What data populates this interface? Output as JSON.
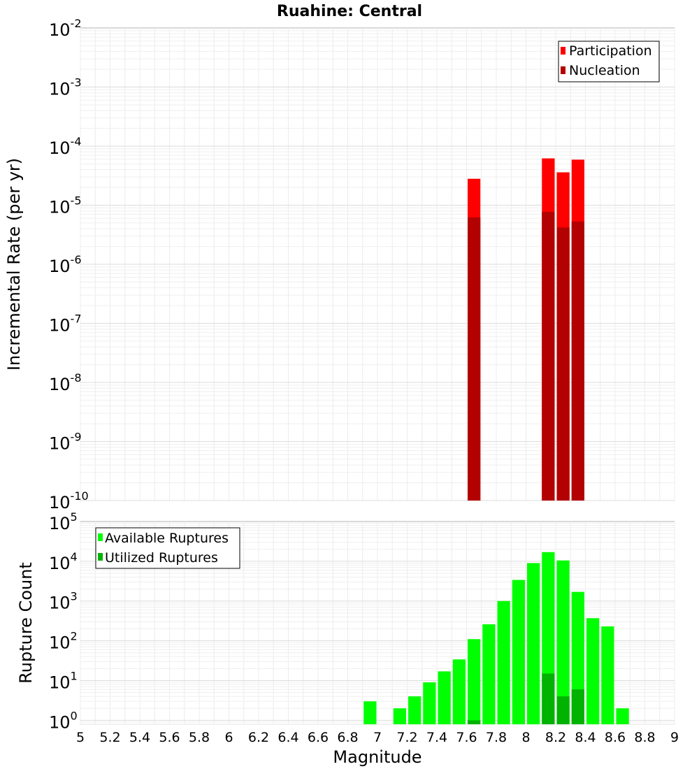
{
  "title": "Ruahine: Central",
  "chart_data": [
    {
      "type": "bar",
      "panel": "top",
      "ylabel": "Incremental Rate (per yr)",
      "xlabel": "",
      "ylog": true,
      "ylim_exp": [
        -10,
        -2
      ],
      "xlim": [
        5,
        9
      ],
      "grid": true,
      "legend_placement": "top-right",
      "bar_width": 0.1,
      "series": [
        {
          "name": "Participation",
          "color": "#ff0000",
          "points": [
            [
              7.65,
              2.8e-05
            ],
            [
              8.15,
              6.2e-05
            ],
            [
              8.25,
              3.6e-05
            ],
            [
              8.35,
              5.9e-05
            ]
          ]
        },
        {
          "name": "Nucleation",
          "color": "#b30000",
          "points": [
            [
              7.65,
              6.2e-06
            ],
            [
              8.15,
              7.7e-06
            ],
            [
              8.25,
              4.2e-06
            ],
            [
              8.35,
              5.3e-06
            ]
          ]
        }
      ]
    },
    {
      "type": "bar",
      "panel": "bottom",
      "ylabel": "Rupture Count",
      "xlabel": "Magnitude",
      "ylog": true,
      "ylim_exp": [
        -0.1,
        5
      ],
      "xlim": [
        5,
        9
      ],
      "grid": true,
      "legend_placement": "top-left",
      "bar_width": 0.1,
      "x_ticks": [
        "5",
        "5.2",
        "5.4",
        "5.6",
        "5.8",
        "6",
        "6.2",
        "6.4",
        "6.6",
        "6.8",
        "7",
        "7.2",
        "7.4",
        "7.6",
        "7.8",
        "8",
        "8.2",
        "8.4",
        "8.6",
        "8.8",
        "9"
      ],
      "series": [
        {
          "name": "Available Ruptures",
          "color": "#00ff00",
          "points": [
            [
              6.95,
              3
            ],
            [
              7.15,
              2
            ],
            [
              7.25,
              4
            ],
            [
              7.35,
              9
            ],
            [
              7.45,
              17
            ],
            [
              7.55,
              34
            ],
            [
              7.65,
              110
            ],
            [
              7.75,
              260
            ],
            [
              7.85,
              1000
            ],
            [
              7.95,
              3400
            ],
            [
              8.05,
              9000
            ],
            [
              8.15,
              17000
            ],
            [
              8.25,
              10500
            ],
            [
              8.35,
              1700
            ],
            [
              8.45,
              370
            ],
            [
              8.55,
              230
            ],
            [
              8.65,
              2
            ]
          ]
        },
        {
          "name": "Utilized Ruptures",
          "color": "#00b300",
          "points": [
            [
              7.65,
              1
            ],
            [
              8.15,
              15
            ],
            [
              8.25,
              4
            ],
            [
              8.35,
              6
            ]
          ]
        }
      ]
    }
  ]
}
